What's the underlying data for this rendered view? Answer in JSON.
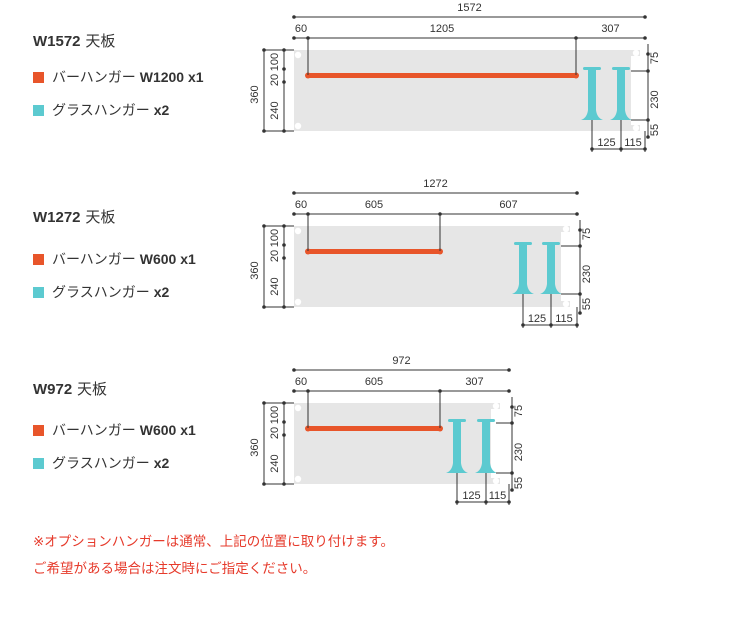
{
  "colors": {
    "bar_hanger": "#e8552a",
    "glass_hanger": "#5ccad0",
    "panel": "#e6e6e6",
    "dim_line": "#333333",
    "note": "#e63a2b"
  },
  "boards": [
    {
      "name": "W1572",
      "unit": "天板",
      "legend": [
        {
          "label": "バーハンガー",
          "spec": "W1200 x1",
          "color": "bar_hanger"
        },
        {
          "label": "グラスハンガー",
          "spec": "x2",
          "color": "glass_hanger"
        }
      ],
      "dims": {
        "total": "1572",
        "left_margin": "60",
        "bar": "1205",
        "right_section": "307",
        "depth": "360",
        "top": "100",
        "mid": "20",
        "bottom": "240",
        "glass_top": "75",
        "glass_len": "230",
        "glass_bottom": "55",
        "glass_gap": "125",
        "glass_edge": "115"
      }
    },
    {
      "name": "W1272",
      "unit": "天板",
      "legend": [
        {
          "label": "バーハンガー",
          "spec": "W600 x1",
          "color": "bar_hanger"
        },
        {
          "label": "グラスハンガー",
          "spec": "x2",
          "color": "glass_hanger"
        }
      ],
      "dims": {
        "total": "1272",
        "left_margin": "60",
        "bar": "605",
        "right_section": "607",
        "depth": "360",
        "top": "100",
        "mid": "20",
        "bottom": "240",
        "glass_top": "75",
        "glass_len": "230",
        "glass_bottom": "55",
        "glass_gap": "125",
        "glass_edge": "115"
      }
    },
    {
      "name": "W972",
      "unit": "天板",
      "legend": [
        {
          "label": "バーハンガー",
          "spec": "W600 x1",
          "color": "bar_hanger"
        },
        {
          "label": "グラスハンガー",
          "spec": "x2",
          "color": "glass_hanger"
        }
      ],
      "dims": {
        "total": "972",
        "left_margin": "60",
        "bar": "605",
        "right_section": "307",
        "depth": "360",
        "top": "100",
        "mid": "20",
        "bottom": "240",
        "glass_top": "75",
        "glass_len": "230",
        "glass_bottom": "55",
        "glass_gap": "125",
        "glass_edge": "115"
      }
    }
  ],
  "notes": [
    "※オプションハンガーは通常、上記の位置に取り付けます。",
    "ご希望がある場合は注文時にご指定ください。"
  ]
}
